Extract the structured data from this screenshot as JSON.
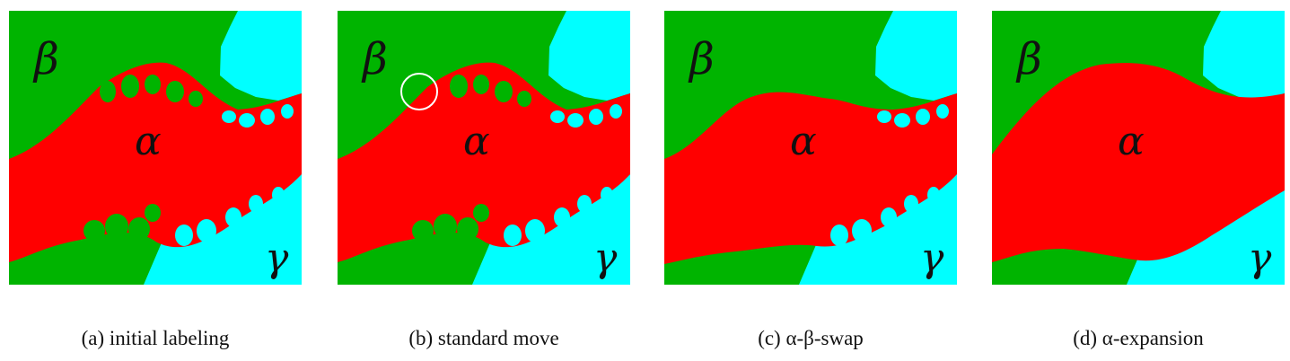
{
  "colors": {
    "alpha": "#ff0000",
    "beta": "#00b400",
    "gamma": "#00ffff",
    "circle": "#ffffff"
  },
  "panels": [
    {
      "caption": "(a) initial labeling"
    },
    {
      "caption": "(b) standard move"
    },
    {
      "caption": "(c) α-β-swap"
    },
    {
      "caption": "(d) α-expansion"
    }
  ],
  "labels": {
    "alpha": "α",
    "beta": "β",
    "gamma": "γ"
  }
}
